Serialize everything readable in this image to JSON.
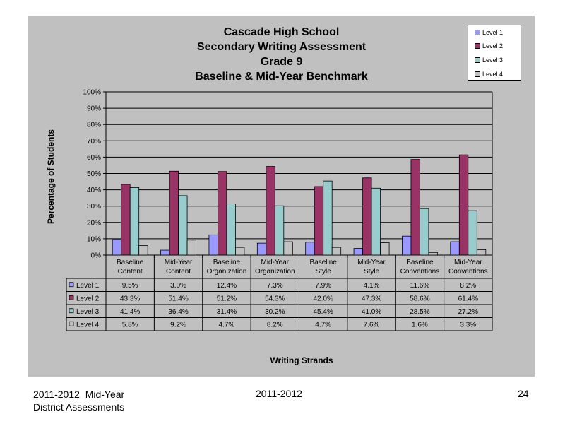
{
  "chart_data": {
    "type": "bar",
    "title": [
      "Cascade High School",
      "Secondary Writing Assessment",
      "Grade 9",
      "Baseline & Mid-Year Benchmark"
    ],
    "ylabel": "Percentage of Students",
    "xlabel": "Writing Strands",
    "ylim": [
      0,
      100
    ],
    "yticks": [
      "0%",
      "10%",
      "20%",
      "30%",
      "40%",
      "50%",
      "60%",
      "70%",
      "80%",
      "90%",
      "100%"
    ],
    "categories": [
      [
        "Baseline",
        "Content"
      ],
      [
        "Mid-Year",
        "Content"
      ],
      [
        "Baseline",
        "Organization"
      ],
      [
        "Mid-Year",
        "Organization"
      ],
      [
        "Baseline",
        "Style"
      ],
      [
        "Mid-Year",
        "Style"
      ],
      [
        "Baseline",
        "Conventions"
      ],
      [
        "Mid-Year",
        "Conventions"
      ]
    ],
    "series": [
      {
        "name": "Level 1",
        "color": "#9999ff",
        "values": [
          9.5,
          3.0,
          12.4,
          7.3,
          7.9,
          4.1,
          11.6,
          8.2
        ],
        "labels": [
          "9.5%",
          "3.0%",
          "12.4%",
          "7.3%",
          "7.9%",
          "4.1%",
          "11.6%",
          "8.2%"
        ]
      },
      {
        "name": "Level 2",
        "color": "#993366",
        "values": [
          43.3,
          51.4,
          51.2,
          54.3,
          42.0,
          47.3,
          58.6,
          61.4
        ],
        "labels": [
          "43.3%",
          "51.4%",
          "51.2%",
          "54.3%",
          "42.0%",
          "47.3%",
          "58.6%",
          "61.4%"
        ]
      },
      {
        "name": "Level 3",
        "color": "#99cccc",
        "values": [
          41.4,
          36.4,
          31.4,
          30.2,
          45.4,
          41.0,
          28.5,
          27.2
        ],
        "labels": [
          "41.4%",
          "36.4%",
          "31.4%",
          "30.2%",
          "45.4%",
          "41.0%",
          "28.5%",
          "27.2%"
        ]
      },
      {
        "name": "Level 4",
        "color": "#c0c0c0",
        "values": [
          5.8,
          9.2,
          4.7,
          8.2,
          4.7,
          7.6,
          1.6,
          3.3
        ],
        "labels": [
          "5.8%",
          "9.2%",
          "4.7%",
          "8.2%",
          "4.7%",
          "7.6%",
          "1.6%",
          "3.3%"
        ]
      }
    ],
    "grid": true,
    "legend_position": "top-right",
    "data_table": true
  },
  "footer": {
    "left_line1": "2011-2012  Mid-Year",
    "left_line2": "District Assessments",
    "center": "2011-2012",
    "page_number": "24"
  }
}
